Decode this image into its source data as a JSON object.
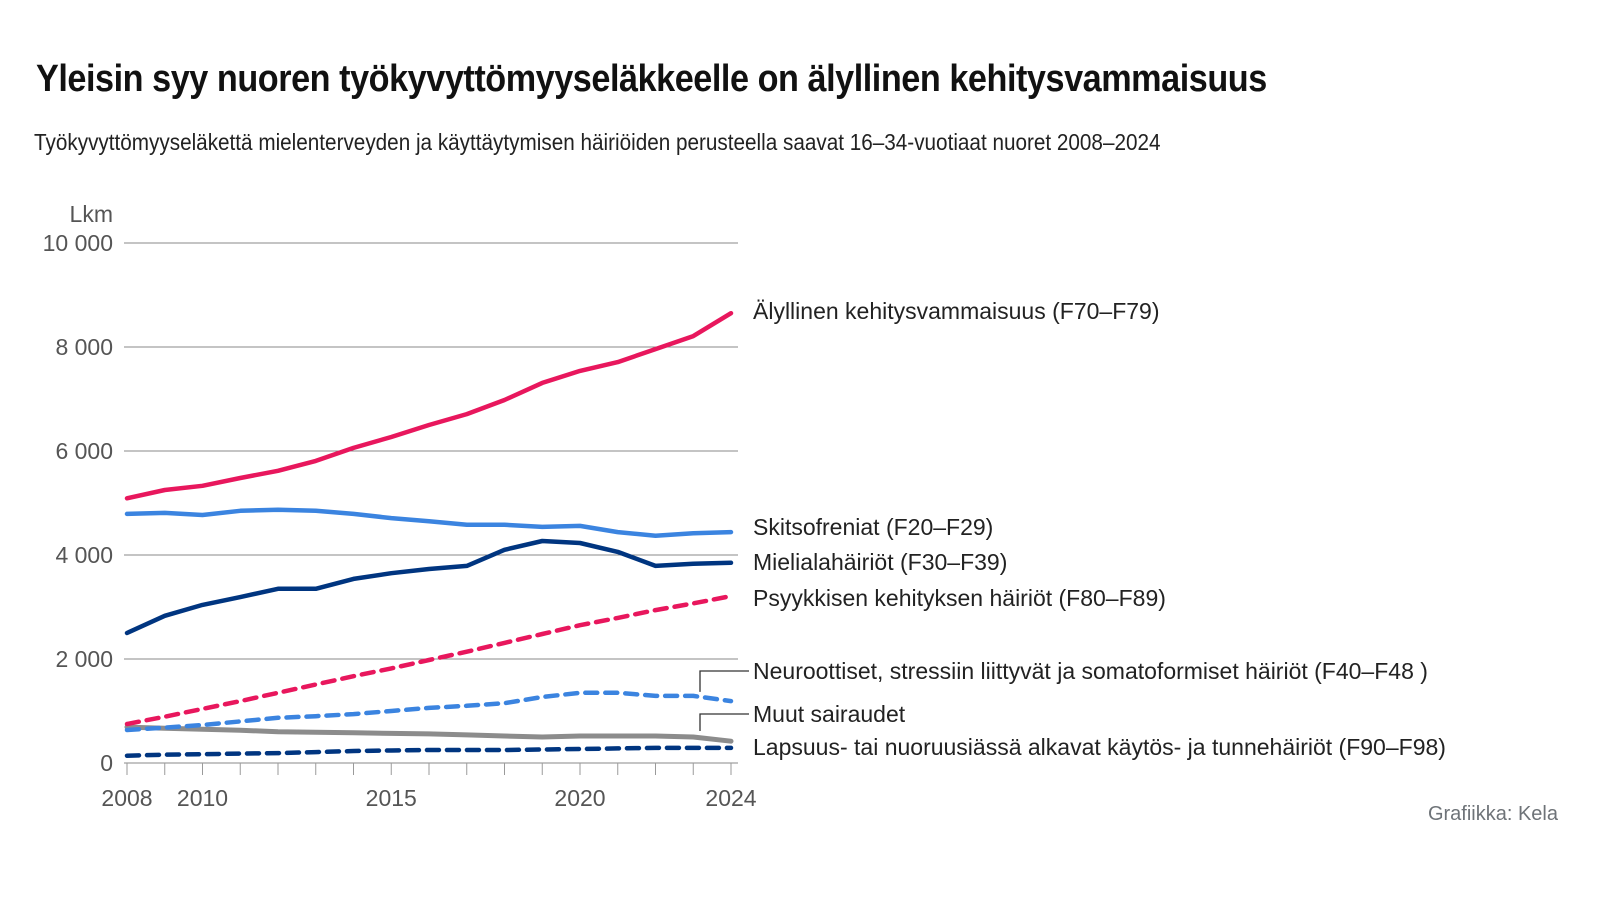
{
  "header": {
    "title": "Yleisin syy nuoren työkyvyttömyyseläkkeelle on älyllinen kehitysvammaisuus",
    "subtitle": "Työkyvyttömyyseläkettä mielenterveyden ja käyttäytymisen häiriöiden perusteella saavat 16–34-vuotiaat nuoret 2008–2024"
  },
  "footer": {
    "credit": "Grafiikka: Kela"
  },
  "chart_data": {
    "type": "line",
    "title": "Yleisin syy nuoren työkyvyttömyyseläkkeelle on älyllinen kehitysvammaisuus",
    "subtitle": "Työkyvyttömyyseläkettä mielenterveyden ja käyttäytymisen häiriöiden perusteella saavat 16–34-vuotiaat nuoret 2008–2024",
    "xlabel": "",
    "ylabel": "Lkm",
    "x": [
      2008,
      2009,
      2010,
      2011,
      2012,
      2013,
      2014,
      2015,
      2016,
      2017,
      2018,
      2019,
      2020,
      2021,
      2022,
      2023,
      2024
    ],
    "xlim": [
      2008,
      2024
    ],
    "ylim": [
      0,
      10000
    ],
    "yticks": [
      0,
      2000,
      4000,
      6000,
      8000,
      10000
    ],
    "ytick_labels": [
      "0",
      "2 000",
      "4 000",
      "6 000",
      "8 000",
      "10 000"
    ],
    "xtick_labels": [
      {
        "value": 2008,
        "label": "2008"
      },
      {
        "value": 2010,
        "label": "2010"
      },
      {
        "value": 2015,
        "label": "2015"
      },
      {
        "value": 2020,
        "label": "2020"
      },
      {
        "value": 2024,
        "label": "2024"
      }
    ],
    "grid": true,
    "legend": "direct-labels-right",
    "series": [
      {
        "name": "Älyllinen kehitysvammaisuus (F70–F79)",
        "color": "#e8175d",
        "style": "solid",
        "values": [
          5090,
          5250,
          5330,
          5480,
          5620,
          5810,
          6060,
          6270,
          6500,
          6710,
          6980,
          7310,
          7540,
          7710,
          7960,
          8210,
          8650
        ]
      },
      {
        "name": "Skitsofreniat (F20–F29)",
        "color": "#3b84e0",
        "style": "solid",
        "values": [
          4790,
          4810,
          4770,
          4850,
          4870,
          4850,
          4790,
          4710,
          4650,
          4580,
          4580,
          4540,
          4560,
          4440,
          4370,
          4420,
          4440
        ]
      },
      {
        "name": "Mielialahäiriöt (F30–F39)",
        "color": "#003580",
        "style": "solid",
        "values": [
          2500,
          2830,
          3040,
          3190,
          3350,
          3350,
          3540,
          3650,
          3730,
          3790,
          4100,
          4270,
          4230,
          4060,
          3790,
          3830,
          3850
        ]
      },
      {
        "name": "Psyykkisen kehityksen häiriöt (F80–F89)",
        "color": "#e8175d",
        "style": "dashed",
        "values": [
          750,
          890,
          1040,
          1190,
          1350,
          1510,
          1670,
          1820,
          1980,
          2140,
          2310,
          2480,
          2650,
          2790,
          2940,
          3070,
          3210
        ]
      },
      {
        "name": "Neuroottiset, stressiin liittyvät ja somatoformiset häiriöt (F40–F48 )",
        "color": "#3b84e0",
        "style": "dashed",
        "values": [
          635,
          680,
          730,
          800,
          870,
          900,
          940,
          1000,
          1060,
          1100,
          1150,
          1270,
          1350,
          1350,
          1290,
          1290,
          1190
        ]
      },
      {
        "name": "Muut sairaudet",
        "color": "#8c8c8c",
        "style": "solid",
        "values": [
          690,
          670,
          650,
          630,
          600,
          590,
          580,
          570,
          560,
          540,
          520,
          500,
          520,
          520,
          520,
          500,
          420
        ]
      },
      {
        "name": "Lapsuus- tai nuoruusiässä alkavat käytös- ja tunnehäiriöt (F90–F98)",
        "color": "#003580",
        "style": "dashed",
        "values": [
          140,
          160,
          170,
          180,
          190,
          210,
          230,
          240,
          250,
          250,
          250,
          260,
          270,
          280,
          290,
          290,
          290
        ]
      }
    ]
  }
}
